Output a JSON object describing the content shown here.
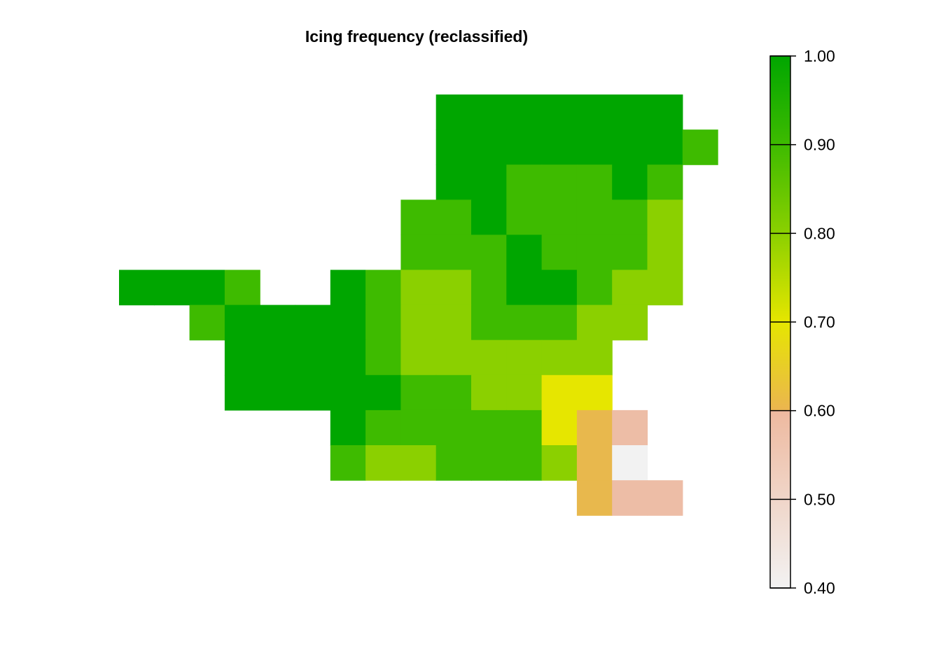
{
  "chart_data": {
    "type": "heatmap",
    "title": "Icing frequency (reclassified)",
    "xlabel": "",
    "ylabel": "",
    "grid": false,
    "legend_position": "right",
    "colorbar": {
      "min": 0.4,
      "max": 1.0,
      "ticks": [
        1.0,
        0.9,
        0.8,
        0.7,
        0.6,
        0.5,
        0.4
      ],
      "tick_labels": [
        "1.00",
        "0.90",
        "0.80",
        "0.70",
        "0.60",
        "0.50",
        "0.40"
      ],
      "classes": [
        {
          "range": [
            0.4,
            0.6
          ],
          "color": "gradient",
          "stops": [
            "#f2f2f2",
            "#eeb99f"
          ]
        },
        {
          "range": [
            0.6,
            0.7
          ],
          "color": "gradient",
          "stops": [
            "#ebb550",
            "#e6e600"
          ]
        },
        {
          "range": [
            0.7,
            0.8
          ],
          "color": "gradient",
          "stops": [
            "#e6e600",
            "#8bd000"
          ]
        },
        {
          "range": [
            0.8,
            0.9
          ],
          "color": "gradient",
          "stops": [
            "#8bd000",
            "#3ebb00"
          ]
        },
        {
          "range": [
            0.9,
            1.0
          ],
          "color": "gradient",
          "stops": [
            "#3ebb00",
            "#00a600"
          ]
        }
      ]
    },
    "value_colors": {
      "1.00": "#00a600",
      "0.90": "#3ebb00",
      "0.80": "#8bd000",
      "0.70": "#e6e600",
      "0.60": "#e8b84d",
      "0.50": "#edbda6",
      "0.40": "#f2f2f2"
    },
    "grid_rows": 12,
    "grid_cols": 17,
    "cells": [
      {
        "row": 0,
        "col": 9,
        "value": 1.0
      },
      {
        "row": 0,
        "col": 10,
        "value": 1.0
      },
      {
        "row": 0,
        "col": 11,
        "value": 1.0
      },
      {
        "row": 0,
        "col": 12,
        "value": 1.0
      },
      {
        "row": 0,
        "col": 13,
        "value": 1.0
      },
      {
        "row": 0,
        "col": 14,
        "value": 1.0
      },
      {
        "row": 0,
        "col": 15,
        "value": 1.0
      },
      {
        "row": 1,
        "col": 9,
        "value": 1.0
      },
      {
        "row": 1,
        "col": 10,
        "value": 1.0
      },
      {
        "row": 1,
        "col": 11,
        "value": 1.0
      },
      {
        "row": 1,
        "col": 12,
        "value": 1.0
      },
      {
        "row": 1,
        "col": 13,
        "value": 1.0
      },
      {
        "row": 1,
        "col": 14,
        "value": 1.0
      },
      {
        "row": 1,
        "col": 15,
        "value": 1.0
      },
      {
        "row": 1,
        "col": 16,
        "value": 0.9
      },
      {
        "row": 2,
        "col": 9,
        "value": 1.0
      },
      {
        "row": 2,
        "col": 10,
        "value": 1.0
      },
      {
        "row": 2,
        "col": 11,
        "value": 0.9
      },
      {
        "row": 2,
        "col": 12,
        "value": 0.9
      },
      {
        "row": 2,
        "col": 13,
        "value": 0.9
      },
      {
        "row": 2,
        "col": 14,
        "value": 1.0
      },
      {
        "row": 2,
        "col": 15,
        "value": 0.9
      },
      {
        "row": 3,
        "col": 8,
        "value": 0.9
      },
      {
        "row": 3,
        "col": 9,
        "value": 0.9
      },
      {
        "row": 3,
        "col": 10,
        "value": 1.0
      },
      {
        "row": 3,
        "col": 11,
        "value": 0.9
      },
      {
        "row": 3,
        "col": 12,
        "value": 0.9
      },
      {
        "row": 3,
        "col": 13,
        "value": 0.9
      },
      {
        "row": 3,
        "col": 14,
        "value": 0.9
      },
      {
        "row": 3,
        "col": 15,
        "value": 0.8
      },
      {
        "row": 4,
        "col": 8,
        "value": 0.9
      },
      {
        "row": 4,
        "col": 9,
        "value": 0.9
      },
      {
        "row": 4,
        "col": 10,
        "value": 0.9
      },
      {
        "row": 4,
        "col": 11,
        "value": 1.0
      },
      {
        "row": 4,
        "col": 12,
        "value": 0.9
      },
      {
        "row": 4,
        "col": 13,
        "value": 0.9
      },
      {
        "row": 4,
        "col": 14,
        "value": 0.9
      },
      {
        "row": 4,
        "col": 15,
        "value": 0.8
      },
      {
        "row": 5,
        "col": 0,
        "value": 1.0
      },
      {
        "row": 5,
        "col": 1,
        "value": 1.0
      },
      {
        "row": 5,
        "col": 2,
        "value": 1.0
      },
      {
        "row": 5,
        "col": 3,
        "value": 0.9
      },
      {
        "row": 5,
        "col": 6,
        "value": 1.0
      },
      {
        "row": 5,
        "col": 7,
        "value": 0.9
      },
      {
        "row": 5,
        "col": 8,
        "value": 0.8
      },
      {
        "row": 5,
        "col": 9,
        "value": 0.8
      },
      {
        "row": 5,
        "col": 10,
        "value": 0.9
      },
      {
        "row": 5,
        "col": 11,
        "value": 1.0
      },
      {
        "row": 5,
        "col": 12,
        "value": 1.0
      },
      {
        "row": 5,
        "col": 13,
        "value": 0.9
      },
      {
        "row": 5,
        "col": 14,
        "value": 0.8
      },
      {
        "row": 5,
        "col": 15,
        "value": 0.8
      },
      {
        "row": 6,
        "col": 2,
        "value": 0.9
      },
      {
        "row": 6,
        "col": 3,
        "value": 1.0
      },
      {
        "row": 6,
        "col": 4,
        "value": 1.0
      },
      {
        "row": 6,
        "col": 5,
        "value": 1.0
      },
      {
        "row": 6,
        "col": 6,
        "value": 1.0
      },
      {
        "row": 6,
        "col": 7,
        "value": 0.9
      },
      {
        "row": 6,
        "col": 8,
        "value": 0.8
      },
      {
        "row": 6,
        "col": 9,
        "value": 0.8
      },
      {
        "row": 6,
        "col": 10,
        "value": 0.9
      },
      {
        "row": 6,
        "col": 11,
        "value": 0.9
      },
      {
        "row": 6,
        "col": 12,
        "value": 0.9
      },
      {
        "row": 6,
        "col": 13,
        "value": 0.8
      },
      {
        "row": 6,
        "col": 14,
        "value": 0.8
      },
      {
        "row": 7,
        "col": 3,
        "value": 1.0
      },
      {
        "row": 7,
        "col": 4,
        "value": 1.0
      },
      {
        "row": 7,
        "col": 5,
        "value": 1.0
      },
      {
        "row": 7,
        "col": 6,
        "value": 1.0
      },
      {
        "row": 7,
        "col": 7,
        "value": 0.9
      },
      {
        "row": 7,
        "col": 8,
        "value": 0.8
      },
      {
        "row": 7,
        "col": 9,
        "value": 0.8
      },
      {
        "row": 7,
        "col": 10,
        "value": 0.8
      },
      {
        "row": 7,
        "col": 11,
        "value": 0.8
      },
      {
        "row": 7,
        "col": 12,
        "value": 0.8
      },
      {
        "row": 7,
        "col": 13,
        "value": 0.8
      },
      {
        "row": 8,
        "col": 3,
        "value": 1.0
      },
      {
        "row": 8,
        "col": 4,
        "value": 1.0
      },
      {
        "row": 8,
        "col": 5,
        "value": 1.0
      },
      {
        "row": 8,
        "col": 6,
        "value": 1.0
      },
      {
        "row": 8,
        "col": 7,
        "value": 1.0
      },
      {
        "row": 8,
        "col": 8,
        "value": 0.9
      },
      {
        "row": 8,
        "col": 9,
        "value": 0.9
      },
      {
        "row": 8,
        "col": 10,
        "value": 0.8
      },
      {
        "row": 8,
        "col": 11,
        "value": 0.8
      },
      {
        "row": 8,
        "col": 12,
        "value": 0.7
      },
      {
        "row": 8,
        "col": 13,
        "value": 0.7
      },
      {
        "row": 9,
        "col": 6,
        "value": 1.0
      },
      {
        "row": 9,
        "col": 7,
        "value": 0.9
      },
      {
        "row": 9,
        "col": 8,
        "value": 0.9
      },
      {
        "row": 9,
        "col": 9,
        "value": 0.9
      },
      {
        "row": 9,
        "col": 10,
        "value": 0.9
      },
      {
        "row": 9,
        "col": 11,
        "value": 0.9
      },
      {
        "row": 9,
        "col": 12,
        "value": 0.7
      },
      {
        "row": 9,
        "col": 13,
        "value": 0.6
      },
      {
        "row": 9,
        "col": 14,
        "value": 0.5
      },
      {
        "row": 10,
        "col": 6,
        "value": 0.9
      },
      {
        "row": 10,
        "col": 7,
        "value": 0.8
      },
      {
        "row": 10,
        "col": 8,
        "value": 0.8
      },
      {
        "row": 10,
        "col": 9,
        "value": 0.9
      },
      {
        "row": 10,
        "col": 10,
        "value": 0.9
      },
      {
        "row": 10,
        "col": 11,
        "value": 0.9
      },
      {
        "row": 10,
        "col": 12,
        "value": 0.8
      },
      {
        "row": 10,
        "col": 13,
        "value": 0.6
      },
      {
        "row": 10,
        "col": 14,
        "value": 0.4
      },
      {
        "row": 11,
        "col": 13,
        "value": 0.6
      },
      {
        "row": 11,
        "col": 14,
        "value": 0.5
      },
      {
        "row": 11,
        "col": 15,
        "value": 0.5
      }
    ]
  }
}
